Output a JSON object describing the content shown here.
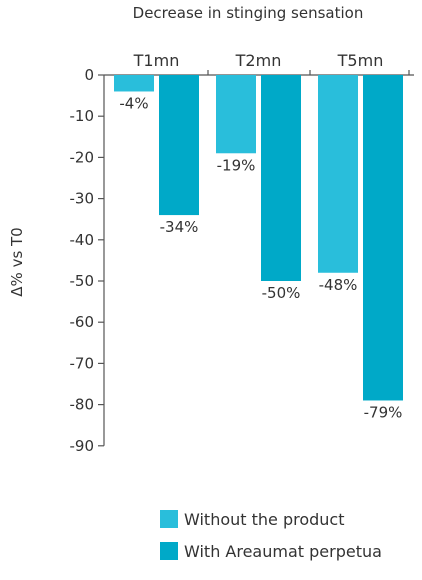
{
  "chart_data": {
    "type": "bar",
    "title": "Decrease in stinging sensation",
    "ylabel": "Δ% vs T0",
    "xlabel": "",
    "categories": [
      "T1mn",
      "T2mn",
      "T5mn"
    ],
    "series": [
      {
        "name": "Without the product",
        "color": "#29bedb",
        "values": [
          -4,
          -19,
          -48
        ],
        "labels": [
          "-4%",
          "-19%",
          "-48%"
        ]
      },
      {
        "name": "With Areaumat perpetua",
        "color": "#00a9c8",
        "values": [
          -34,
          -50,
          -79
        ],
        "labels": [
          "-34%",
          "-50%",
          "-79%"
        ]
      }
    ],
    "ylim": [
      -90,
      0
    ],
    "yticks": [
      0,
      -10,
      -20,
      -30,
      -40,
      -50,
      -60,
      -70,
      -80,
      -90
    ],
    "ytick_labels": [
      "0",
      "-10",
      "-20",
      "-30",
      "-40",
      "-50",
      "-60",
      "-70",
      "-80",
      "-90"
    ],
    "grid": false,
    "legend_position": "bottom"
  },
  "colors": {
    "axis": "#555555",
    "text": "#333333"
  }
}
